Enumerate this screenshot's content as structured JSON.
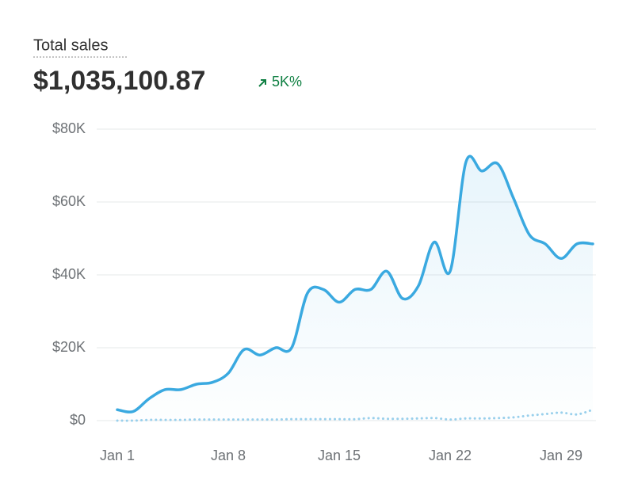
{
  "chart_data": {
    "type": "line",
    "title": "Total sales",
    "total": "$1,035,100.87",
    "change": "5K%",
    "categories": [
      "Jan 1",
      null,
      null,
      null,
      null,
      null,
      null,
      "Jan 8",
      null,
      null,
      null,
      null,
      null,
      null,
      "Jan 15",
      null,
      null,
      null,
      null,
      null,
      null,
      "Jan 22",
      null,
      null,
      null,
      null,
      null,
      null,
      "Jan 29",
      null,
      null
    ],
    "series": [
      {
        "color": "#3aa9e0",
        "style": "solid",
        "values": [
          3000,
          2500,
          6000,
          8500,
          8500,
          10000,
          10500,
          13000,
          19500,
          18000,
          20000,
          20000,
          35000,
          36000,
          32500,
          36000,
          36000,
          41000,
          33500,
          37000,
          49000,
          41000,
          71000,
          68500,
          70500,
          61000,
          51000,
          48500,
          44500,
          48500,
          48500
        ]
      },
      {
        "color": "#9ad0ec",
        "style": "dotted",
        "values": [
          0,
          0,
          200,
          200,
          200,
          300,
          300,
          300,
          300,
          300,
          300,
          400,
          400,
          400,
          400,
          400,
          700,
          500,
          500,
          600,
          700,
          300,
          600,
          600,
          700,
          900,
          1400,
          1800,
          2200,
          1700,
          3000
        ]
      }
    ],
    "ylim": [
      0,
      80000
    ],
    "yticks": [
      {
        "value": 0,
        "label": "$0"
      },
      {
        "value": 20000,
        "label": "$20K"
      },
      {
        "value": 40000,
        "label": "$40K"
      },
      {
        "value": 60000,
        "label": "$60K"
      },
      {
        "value": 80000,
        "label": "$80K"
      }
    ],
    "grid": true
  }
}
